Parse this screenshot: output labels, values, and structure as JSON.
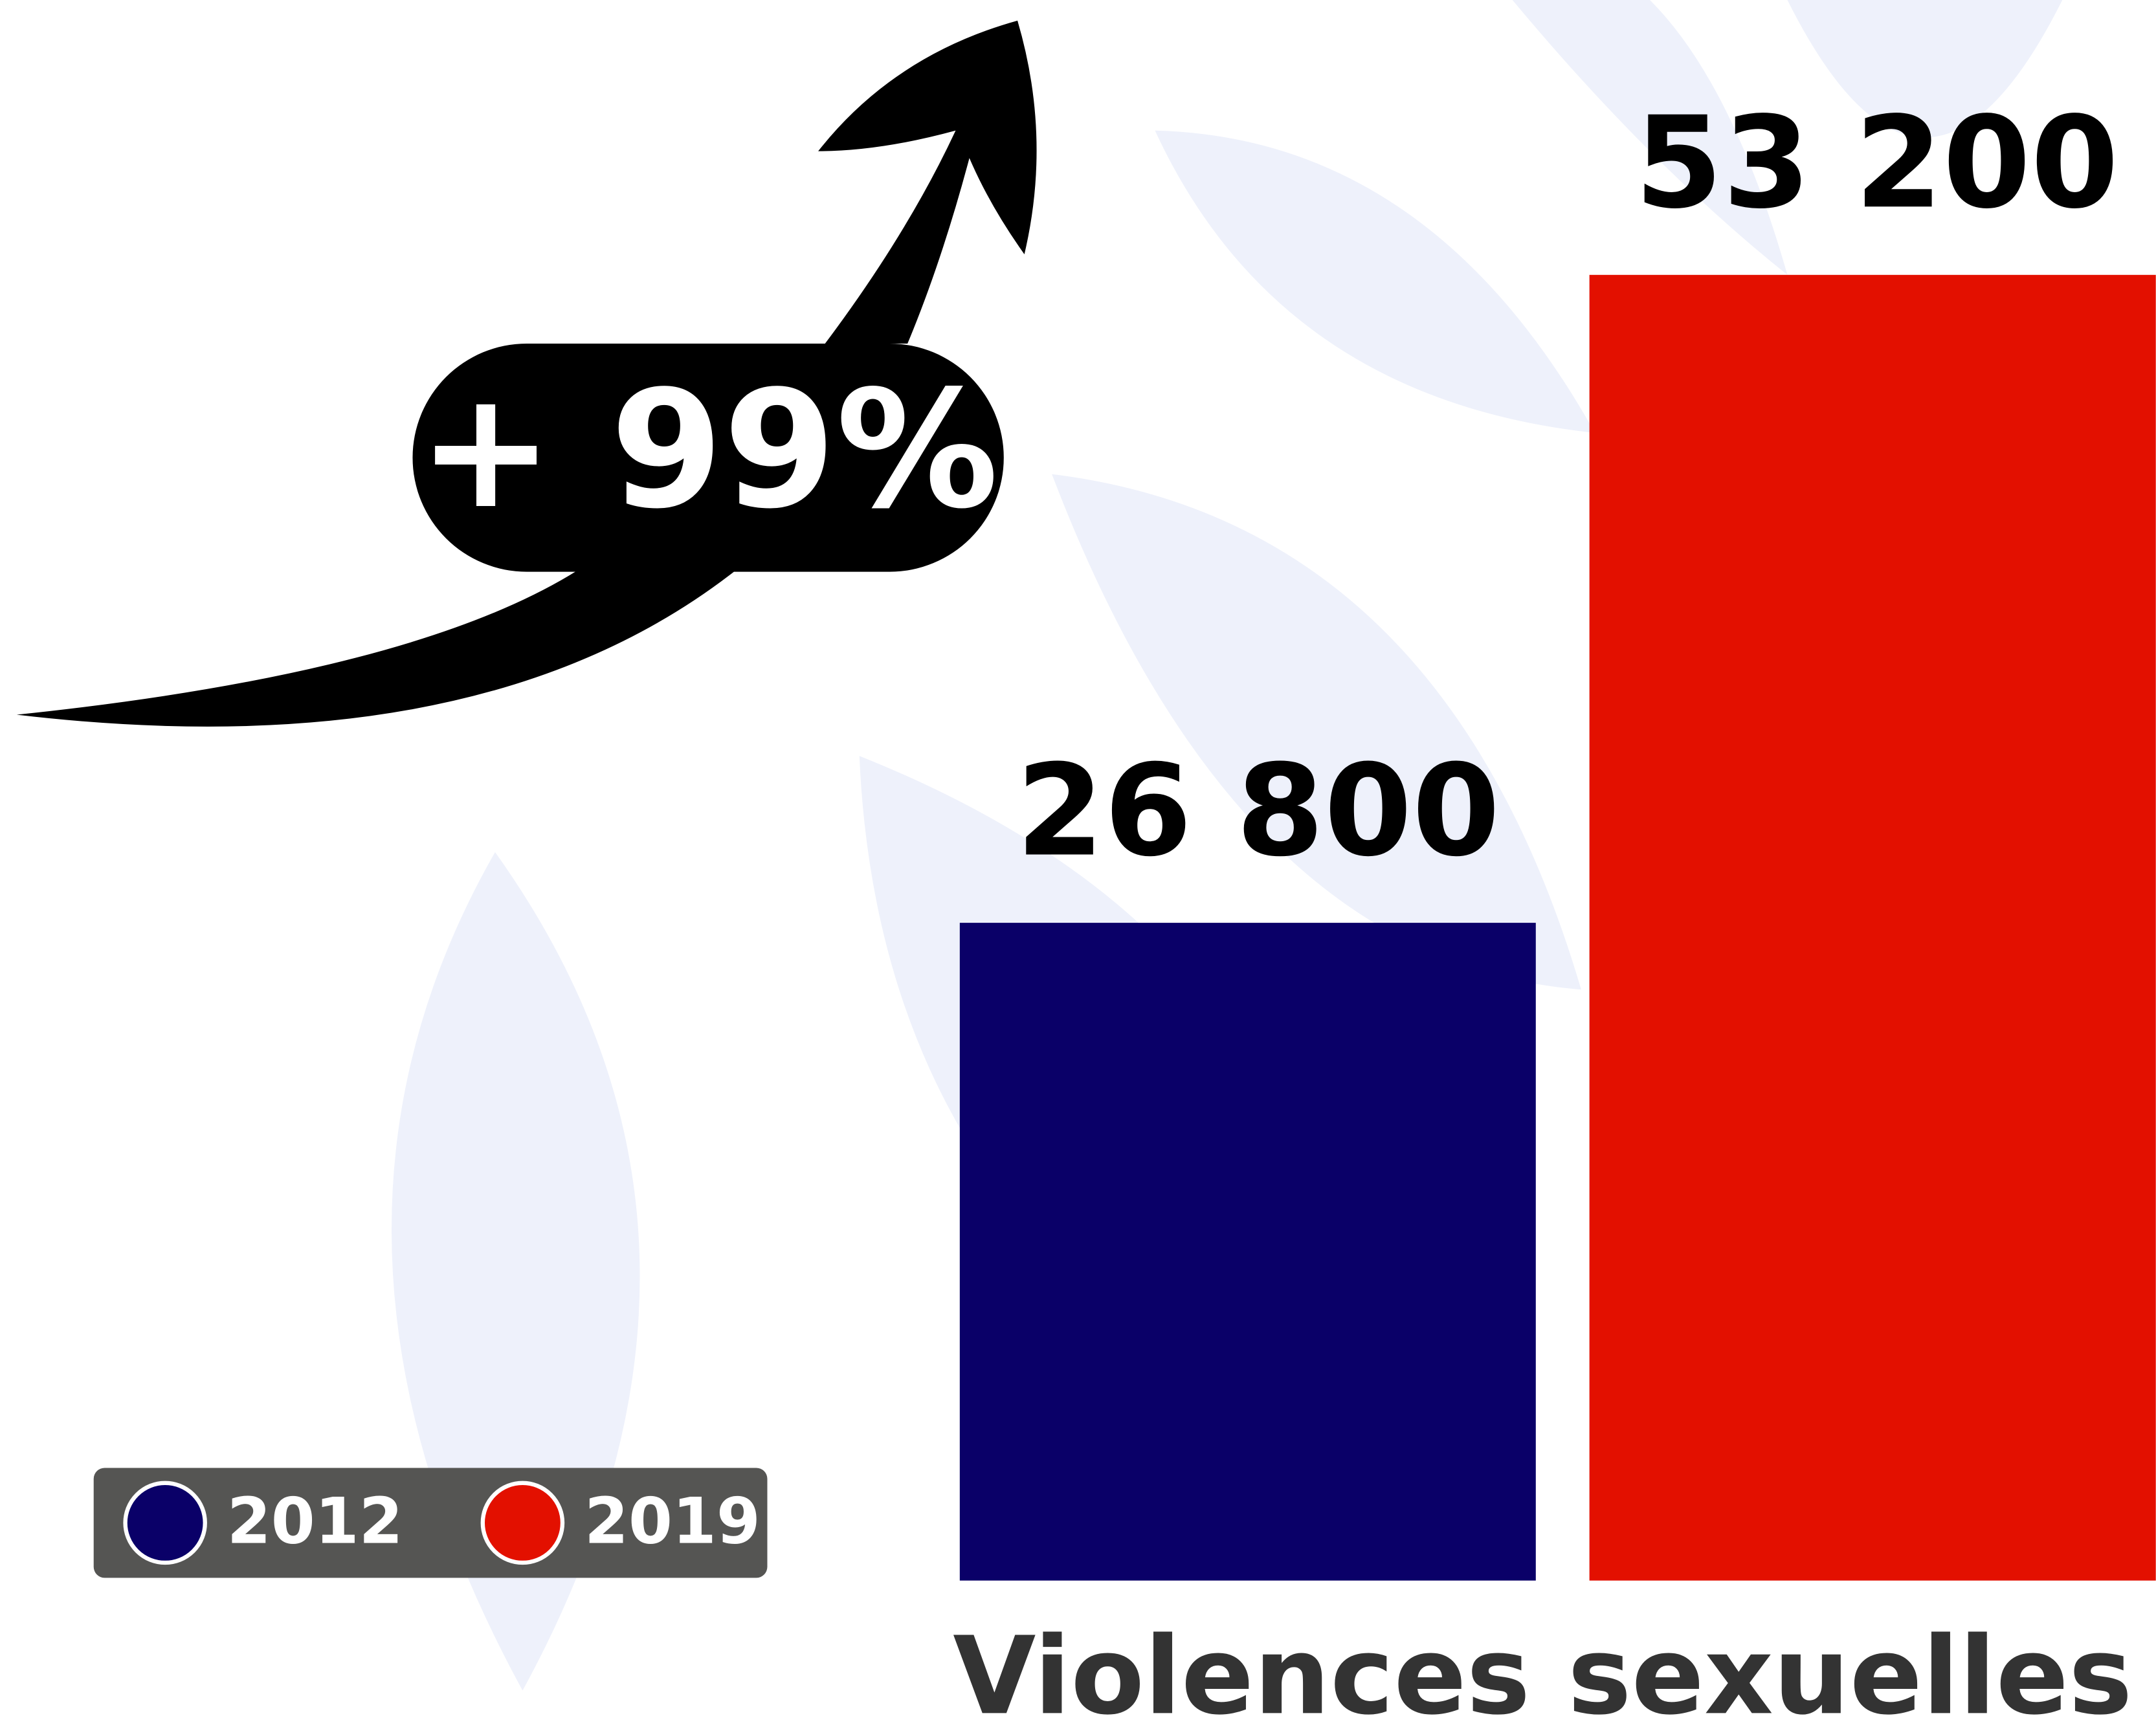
{
  "chart_data": {
    "type": "bar",
    "categories": [
      "Violences sexuelles"
    ],
    "series": [
      {
        "name": "2012",
        "color": "#0a0068",
        "values": [
          26800
        ],
        "value_labels": [
          "26 800"
        ]
      },
      {
        "name": "2019",
        "color": "#e31000",
        "values": [
          53200
        ],
        "value_labels": [
          "53 200"
        ]
      }
    ],
    "annotation": "+ 99%"
  }
}
